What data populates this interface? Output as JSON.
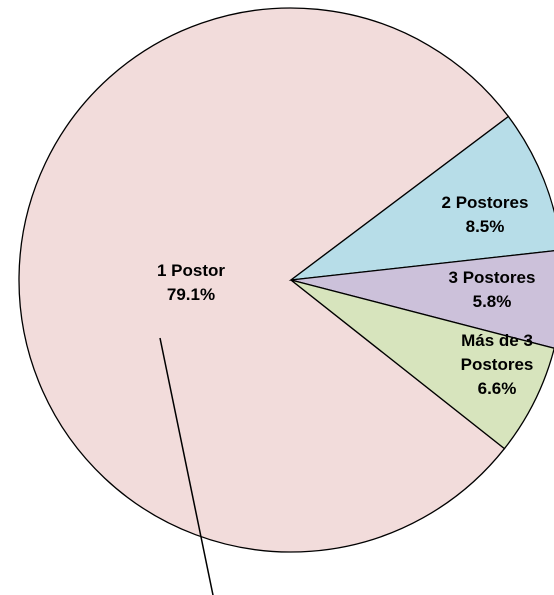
{
  "chart_data": {
    "type": "pie",
    "categories": [
      "1 Postor",
      "2 Postores",
      "3 Postores",
      "Más de 3 Postores"
    ],
    "values": [
      79.1,
      8.5,
      5.8,
      6.6
    ],
    "value_labels": [
      "79.1%",
      "8.5%",
      "5.8%",
      "6.6%"
    ],
    "colors": [
      "#f2dcdb",
      "#b7dde8",
      "#ccc1da",
      "#d7e4bd"
    ]
  }
}
